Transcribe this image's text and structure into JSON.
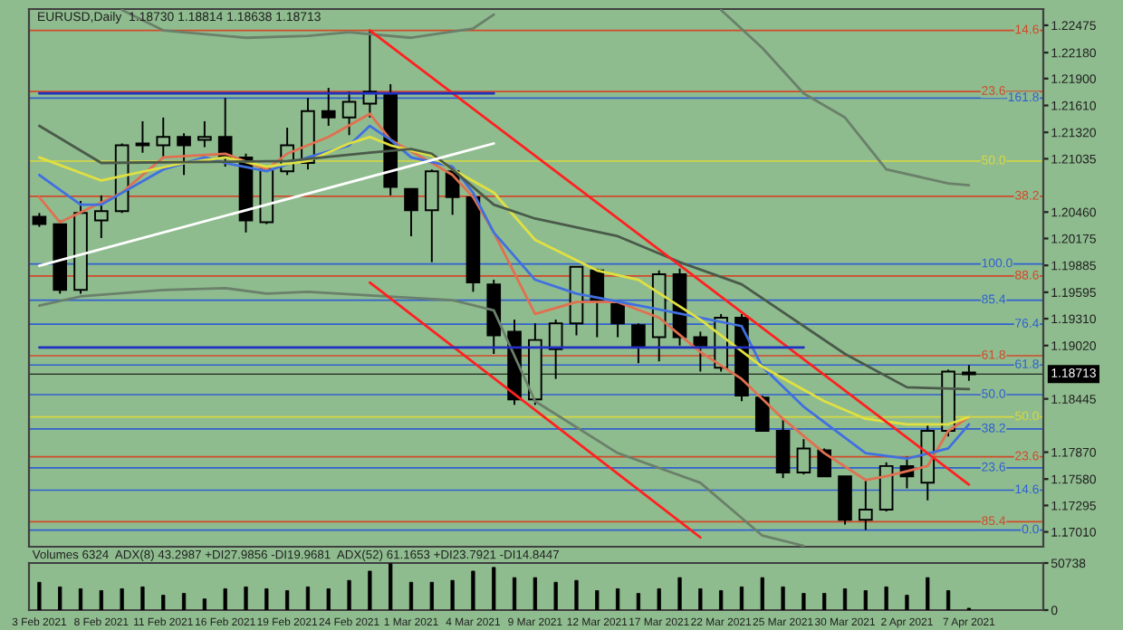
{
  "chart_data": [
    {
      "type": "candlestick",
      "title": "EURUSD,Daily  1.18730 1.18814 1.18638 1.18713",
      "tick_labels": "y",
      "grid": false,
      "categories": [
        null,
        null,
        null,
        null,
        null,
        null,
        null,
        null,
        null,
        null,
        null,
        null,
        null,
        null,
        null,
        null,
        null,
        null,
        null,
        null,
        null,
        null,
        null,
        null,
        null,
        null,
        null,
        null,
        null,
        null,
        null,
        null,
        null,
        null,
        null,
        null,
        null,
        null,
        null,
        null,
        null,
        null,
        null,
        null,
        null,
        null
      ],
      "ohlc": [
        [
          1.2041,
          1.2045,
          1.203,
          1.2033
        ],
        [
          1.2033,
          1.2037,
          1.1958,
          1.1962
        ],
        [
          1.1962,
          1.2058,
          1.1958,
          1.2045
        ],
        [
          1.2037,
          1.2064,
          1.2018,
          1.2047
        ],
        [
          1.2047,
          1.212,
          1.2045,
          1.2118
        ],
        [
          1.2118,
          1.2144,
          1.211,
          1.212
        ],
        [
          1.2118,
          1.2148,
          1.2105,
          1.2127
        ],
        [
          1.2127,
          1.2131,
          1.2086,
          1.2118
        ],
        [
          1.2124,
          1.2144,
          1.2116,
          1.2127
        ],
        [
          1.2127,
          1.2169,
          1.2095,
          1.2105
        ],
        [
          1.2105,
          1.2109,
          1.2024,
          1.2037
        ],
        [
          1.2035,
          1.2092,
          1.2033,
          1.2092
        ],
        [
          1.209,
          1.2137,
          1.2086,
          1.2118
        ],
        [
          1.2099,
          1.2169,
          1.2092,
          1.2155
        ],
        [
          1.2155,
          1.218,
          1.2139,
          1.2148
        ],
        [
          1.2148,
          1.2176,
          1.2129,
          1.2165
        ],
        [
          1.2163,
          1.2242,
          1.2148,
          1.2176
        ],
        [
          1.2174,
          1.2184,
          1.2064,
          1.2073
        ],
        [
          1.2071,
          1.2071,
          1.202,
          1.2048
        ],
        [
          1.2048,
          1.2092,
          1.1992,
          1.209
        ],
        [
          1.209,
          1.2095,
          1.2043,
          1.2062
        ],
        [
          1.2062,
          1.2065,
          1.196,
          1.197
        ],
        [
          1.1968,
          1.1973,
          1.1893,
          1.1913
        ],
        [
          1.1917,
          1.193,
          1.1838,
          1.1844
        ],
        [
          1.1844,
          1.1926,
          1.1838,
          1.1908
        ],
        [
          1.1898,
          1.193,
          1.1866,
          1.1926
        ],
        [
          1.1926,
          1.1987,
          1.1913,
          1.1987
        ],
        [
          1.1983,
          1.1985,
          1.1911,
          1.1951
        ],
        [
          1.1947,
          1.1949,
          1.1911,
          1.1926
        ],
        [
          1.1924,
          1.1926,
          1.1883,
          1.19
        ],
        [
          1.1911,
          1.1983,
          1.1885,
          1.1979
        ],
        [
          1.1979,
          1.1985,
          1.1902,
          1.1911
        ],
        [
          1.1911,
          1.1917,
          1.1874,
          1.1902
        ],
        [
          1.1878,
          1.1936,
          1.1874,
          1.1932
        ],
        [
          1.1932,
          1.1936,
          1.1842,
          1.1848
        ],
        [
          1.1846,
          1.1848,
          1.181,
          1.181
        ],
        [
          1.181,
          1.1823,
          1.1759,
          1.1765
        ],
        [
          1.1765,
          1.1801,
          1.1763,
          1.1791
        ],
        [
          1.1789,
          1.1791,
          1.1761,
          1.1761
        ],
        [
          1.1761,
          1.1761,
          1.1709,
          1.1714
        ],
        [
          1.1714,
          1.1757,
          1.1703,
          1.1725
        ],
        [
          1.1725,
          1.1776,
          1.1723,
          1.1772
        ],
        [
          1.1772,
          1.1782,
          1.1748,
          1.1761
        ],
        [
          1.1754,
          1.1817,
          1.1735,
          1.181
        ],
        [
          1.181,
          1.1876,
          1.1804,
          1.1874
        ],
        [
          1.1873,
          1.1881,
          1.1864,
          1.1871
        ]
      ],
      "ylim": [
        1.1685,
        1.2265
      ],
      "yticks": [
        {
          "value": 1.22475,
          "label": "1.22475"
        },
        {
          "value": 1.2218,
          "label": "1.22180"
        },
        {
          "value": 1.219,
          "label": "1.21900"
        },
        {
          "value": 1.2161,
          "label": "1.21610"
        },
        {
          "value": 1.2132,
          "label": "1.21320"
        },
        {
          "value": 1.21035,
          "label": "1.21035"
        },
        {
          "value": 1.2046,
          "label": "1.20460"
        },
        {
          "value": 1.20175,
          "label": "1.20175"
        },
        {
          "value": 1.19885,
          "label": "1.19885"
        },
        {
          "value": 1.19595,
          "label": "1.19595"
        },
        {
          "value": 1.1931,
          "label": "1.19310"
        },
        {
          "value": 1.1902,
          "label": "1.19020"
        },
        {
          "value": 1.18445,
          "label": "1.18445"
        },
        {
          "value": 1.1787,
          "label": "1.17870"
        },
        {
          "value": 1.1758,
          "label": "1.17580"
        },
        {
          "value": 1.17295,
          "label": "1.17295"
        },
        {
          "value": 1.1701,
          "label": "1.17010"
        }
      ],
      "series": [
        {
          "type": "line",
          "color": "#e07050",
          "values": [
            1.2062,
            1.2035,
            null,
            null,
            1.2067,
            null,
            1.2105,
            null,
            null,
            1.2109,
            null,
            1.2092,
            1.2109,
            null,
            1.2127,
            null,
            1.2152,
            1.2124,
            null,
            1.2099,
            1.2086,
            1.2062,
            1.2024,
            null,
            1.1936,
            null,
            1.1949,
            null,
            1.1949,
            null,
            1.1932,
            null,
            1.1895,
            null,
            1.1866,
            null,
            1.1823,
            null,
            1.1786,
            null,
            1.1757,
            1.1761,
            null,
            1.1772,
            1.181,
            1.1825
          ]
        },
        {
          "type": "line",
          "color": "#4070e0",
          "values": [
            1.2086,
            null,
            1.2054,
            1.2054,
            null,
            null,
            1.2092,
            null,
            1.2105,
            1.2099,
            null,
            1.209,
            null,
            1.2105,
            null,
            1.2118,
            1.2139,
            1.2124,
            1.2105,
            null,
            1.2095,
            1.2067,
            1.2024,
            null,
            1.1973,
            null,
            1.1958,
            null,
            null,
            null,
            1.1941,
            null,
            null,
            null,
            1.1923,
            1.1879,
            null,
            1.1836,
            null,
            null,
            1.1786,
            null,
            1.178,
            null,
            1.1791,
            1.1817
          ]
        },
        {
          "type": "line",
          "color": "#e0e040",
          "values": [
            1.2105,
            null,
            null,
            1.208,
            null,
            null,
            null,
            1.2099,
            null,
            1.2105,
            null,
            1.2095,
            null,
            1.2101,
            null,
            1.212,
            1.2127,
            1.2118,
            null,
            1.2107,
            1.2092,
            null,
            1.2067,
            null,
            1.2016,
            null,
            null,
            1.1983,
            null,
            1.1973,
            null,
            null,
            1.193,
            null,
            null,
            1.1879,
            null,
            null,
            1.1842,
            null,
            1.1823,
            null,
            1.1817,
            null,
            1.1817,
            1.1825
          ]
        },
        {
          "type": "line",
          "color": "#4a5a4a",
          "values": [
            1.2139,
            null,
            null,
            1.2099,
            null,
            null,
            null,
            null,
            null,
            null,
            null,
            null,
            1.2101,
            null,
            null,
            null,
            1.211,
            null,
            1.2114,
            1.2109,
            1.2092,
            null,
            1.2054,
            null,
            1.2039,
            null,
            null,
            null,
            1.202,
            null,
            null,
            1.1992,
            null,
            null,
            1.1968,
            null,
            null,
            null,
            null,
            1.1893,
            null,
            null,
            1.1857,
            null,
            null,
            1.1855
          ]
        },
        {
          "type": "line",
          "color": "#6a806a",
          "values": [
            null,
            null,
            null,
            null,
            1.2264,
            null,
            1.2242,
            null,
            null,
            null,
            1.2234,
            null,
            null,
            1.2236,
            null,
            1.224,
            null,
            null,
            1.2234,
            null,
            null,
            1.2244,
            1.2259,
            null,
            null,
            null,
            null,
            null,
            null,
            null,
            null,
            null,
            null,
            null,
            null,
            null,
            null,
            null,
            null,
            null,
            null,
            null,
            null,
            null,
            null,
            null
          ]
        },
        {
          "type": "line",
          "color": "#6a806a",
          "values": [
            null,
            null,
            null,
            null,
            null,
            null,
            null,
            null,
            null,
            null,
            null,
            null,
            null,
            null,
            null,
            null,
            null,
            null,
            null,
            null,
            null,
            null,
            null,
            null,
            null,
            null,
            null,
            null,
            null,
            null,
            null,
            null,
            null,
            1.2264,
            null,
            1.2223,
            null,
            1.2174,
            null,
            1.2148,
            null,
            1.2092,
            null,
            null,
            1.2077,
            1.2075
          ]
        },
        {
          "type": "line",
          "color": "#6a806a",
          "values": [
            1.1945,
            null,
            1.1955,
            null,
            null,
            null,
            1.1962,
            null,
            null,
            1.1964,
            null,
            1.1958,
            null,
            1.196,
            null,
            null,
            1.1956,
            null,
            null,
            null,
            1.1951,
            null,
            1.194,
            null,
            1.1842,
            null,
            null,
            null,
            1.1786,
            null,
            null,
            null,
            1.1754,
            null,
            null,
            1.1697,
            null,
            1.1686,
            null,
            null,
            null,
            null,
            null,
            null,
            null,
            null
          ]
        },
        {
          "type": "line",
          "color": "#ff2020",
          "values": [
            null,
            null,
            null,
            null,
            null,
            null,
            null,
            null,
            null,
            null,
            null,
            null,
            null,
            null,
            null,
            null,
            1.2242,
            null,
            null,
            null,
            null,
            null,
            null,
            null,
            null,
            null,
            null,
            null,
            null,
            null,
            null,
            null,
            null,
            null,
            null,
            null,
            null,
            null,
            null,
            null,
            null,
            null,
            null,
            null,
            null,
            1.1752
          ]
        },
        {
          "type": "line",
          "color": "#ff2020",
          "values": [
            null,
            null,
            null,
            null,
            null,
            null,
            null,
            null,
            null,
            null,
            null,
            null,
            null,
            null,
            null,
            null,
            1.197,
            null,
            null,
            null,
            null,
            null,
            null,
            null,
            null,
            null,
            null,
            null,
            null,
            null,
            null,
            null,
            1.1695,
            null,
            null,
            null,
            null,
            null,
            null,
            null,
            null,
            null,
            null,
            null,
            null,
            null
          ]
        },
        {
          "type": "line",
          "color": "#ffffff",
          "values": [
            1.1988,
            null,
            null,
            null,
            null,
            null,
            null,
            null,
            null,
            null,
            null,
            null,
            null,
            null,
            null,
            null,
            null,
            null,
            null,
            null,
            null,
            null,
            1.212,
            null,
            null,
            null,
            null,
            null,
            null,
            null,
            null,
            null,
            null,
            null,
            null,
            null,
            null,
            null,
            null,
            null,
            null,
            null,
            null,
            null,
            null,
            null
          ]
        },
        {
          "type": "line",
          "color": "#2030c0",
          "values": [
            1.2174,
            null,
            null,
            null,
            null,
            null,
            null,
            null,
            null,
            null,
            null,
            null,
            null,
            null,
            null,
            null,
            null,
            null,
            null,
            null,
            null,
            null,
            1.2174,
            null,
            null,
            null,
            null,
            null,
            null,
            null,
            null,
            null,
            null,
            null,
            null,
            null,
            null,
            null,
            null,
            null,
            null,
            null,
            null,
            null,
            null,
            null
          ]
        },
        {
          "type": "line",
          "color": "#2030c0",
          "values": [
            1.19,
            null,
            null,
            null,
            null,
            null,
            null,
            null,
            null,
            null,
            null,
            null,
            null,
            null,
            null,
            null,
            null,
            null,
            null,
            null,
            null,
            null,
            null,
            null,
            null,
            null,
            null,
            null,
            null,
            null,
            null,
            null,
            null,
            null,
            null,
            null,
            null,
            1.19,
            null,
            null,
            null,
            null,
            null,
            null,
            null,
            null
          ]
        }
      ],
      "ref_lines": [
        {
          "axis": "y",
          "value": 1.2242,
          "color": "#d04a2a"
        },
        {
          "axis": "y",
          "value": 1.2176,
          "color": "#d04a2a"
        },
        {
          "axis": "y",
          "value": 1.2169,
          "color": "#3060d0"
        },
        {
          "axis": "y",
          "value": 1.2101,
          "color": "#d8d840"
        },
        {
          "axis": "y",
          "value": 1.2063,
          "color": "#d04a2a"
        },
        {
          "axis": "y",
          "value": 1.199,
          "color": "#3060d0"
        },
        {
          "axis": "y",
          "value": 1.1977,
          "color": "#d04a2a"
        },
        {
          "axis": "y",
          "value": 1.1951,
          "color": "#3060d0"
        },
        {
          "axis": "y",
          "value": 1.1925,
          "color": "#3060d0"
        },
        {
          "axis": "y",
          "value": 1.1891,
          "color": "#d04a2a"
        },
        {
          "axis": "y",
          "value": 1.1881,
          "color": "#3060d0"
        },
        {
          "axis": "y",
          "value": 1.1849,
          "color": "#3060d0"
        },
        {
          "axis": "y",
          "value": 1.1825,
          "color": "#d8d840"
        },
        {
          "axis": "y",
          "value": 1.1812,
          "color": "#3060d0"
        },
        {
          "axis": "y",
          "value": 1.1782,
          "color": "#d04a2a"
        },
        {
          "axis": "y",
          "value": 1.177,
          "color": "#3060d0"
        },
        {
          "axis": "y",
          "value": 1.1746,
          "color": "#3060d0"
        },
        {
          "axis": "y",
          "value": 1.1712,
          "color": "#d04a2a"
        },
        {
          "axis": "y",
          "value": 1.1703,
          "color": "#3060d0"
        },
        {
          "axis": "y",
          "value": 1.18713,
          "label": "1.18713",
          "color": "#000000"
        }
      ],
      "annotations": [
        {
          "text": "14.6",
          "y": 1.2242
        },
        {
          "text": "23.6",
          "y": 1.2176
        },
        {
          "text": "161.8",
          "y": 1.2169
        },
        {
          "text": "50.0",
          "y": 1.2101
        },
        {
          "text": "38.2",
          "y": 1.2063
        },
        {
          "text": "100.0",
          "y": 1.199
        },
        {
          "text": "88.6",
          "y": 1.1977
        },
        {
          "text": "85.4",
          "y": 1.1951
        },
        {
          "text": "76.4",
          "y": 1.1925
        },
        {
          "text": "61.8",
          "y": 1.1891
        },
        {
          "text": "61.8",
          "y": 1.1881
        },
        {
          "text": "50.0",
          "y": 1.1849
        },
        {
          "text": "50.0",
          "y": 1.1825
        },
        {
          "text": "38.2",
          "y": 1.1812
        },
        {
          "text": "23.6",
          "y": 1.1782
        },
        {
          "text": "23.6",
          "y": 1.177
        },
        {
          "text": "14.6",
          "y": 1.1746
        },
        {
          "text": "85.4",
          "y": 1.1712
        },
        {
          "text": "0.0",
          "y": 1.1703
        }
      ]
    },
    {
      "type": "bar",
      "color": "#000000",
      "grid": false,
      "categories": [
        "3 Feb 2021",
        null,
        null,
        "8 Feb 2021",
        null,
        null,
        "11 Feb 2021",
        null,
        null,
        "16 Feb 2021",
        null,
        null,
        "19 Feb 2021",
        null,
        null,
        "24 Feb 2021",
        null,
        null,
        "1 Mar 2021",
        null,
        null,
        "4 Mar 2021",
        null,
        null,
        "9 Mar 2021",
        null,
        null,
        "12 Mar 2021",
        null,
        null,
        "17 Mar 2021",
        null,
        null,
        "22 Mar 2021",
        null,
        null,
        "25 Mar 2021",
        null,
        null,
        "30 Mar 2021",
        null,
        null,
        "2 Apr 2021",
        null,
        null,
        "7 Apr 2021"
      ],
      "values": [
        30000,
        25000,
        23000,
        21000,
        23000,
        25000,
        16000,
        18000,
        12000,
        23000,
        25000,
        23000,
        21000,
        25000,
        23000,
        32000,
        42000,
        50000,
        30000,
        30000,
        32000,
        42000,
        46000,
        35000,
        35000,
        30000,
        32000,
        21000,
        23000,
        18000,
        23000,
        35000,
        23000,
        21000,
        25000,
        35000,
        25000,
        18000,
        18000,
        23000,
        21000,
        25000,
        16000,
        35000,
        21000,
        2000
      ],
      "ylim": [
        0,
        50738
      ],
      "yticks": [
        0,
        50738
      ],
      "annotations": [
        "Volumes 6324  ADX(8) 43.2987 +DI27.9856 -DI19.9681  ADX(52) 61.1653 +DI23.7921 -DI14.8447"
      ]
    }
  ]
}
